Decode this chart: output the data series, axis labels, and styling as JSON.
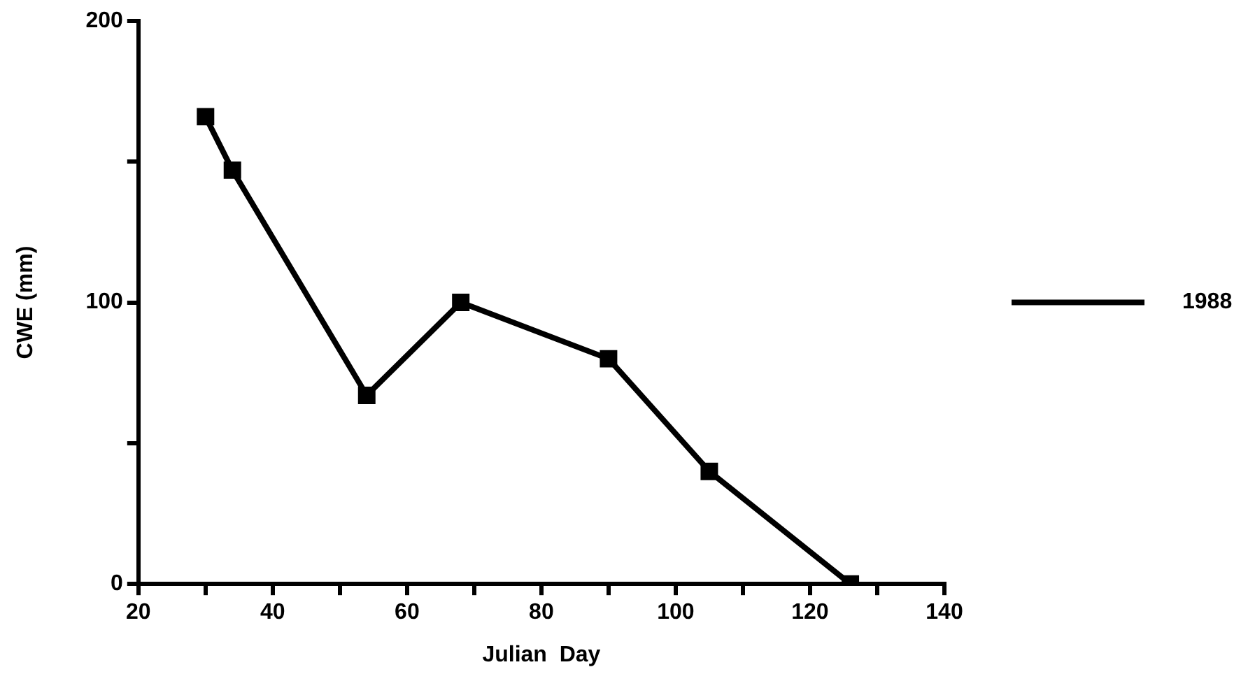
{
  "chart_data": {
    "type": "line",
    "xlabel": "Julian  Day",
    "ylabel": "CWE (mm)",
    "x": [
      30,
      34,
      54,
      68,
      90,
      105,
      126
    ],
    "series": [
      {
        "name": "1988",
        "color": "#000000",
        "values": [
          166,
          147,
          67,
          100,
          80,
          40,
          0
        ]
      }
    ],
    "xlim": [
      20,
      140
    ],
    "xticks": [
      20,
      {
        "value": 30,
        "label": null
      },
      40,
      {
        "value": 50,
        "label": null
      },
      60,
      {
        "value": 70,
        "label": null
      },
      80,
      {
        "value": 90,
        "label": null
      },
      100,
      {
        "value": 110,
        "label": null
      },
      120,
      {
        "value": 130,
        "label": null
      },
      140
    ],
    "ylim": [
      0,
      200
    ],
    "yticks": [
      0,
      {
        "value": 50,
        "label": null
      },
      100,
      {
        "value": 150,
        "label": null
      },
      200
    ],
    "grid": false,
    "legend": "right",
    "marker": "square",
    "line_style": "solid"
  }
}
